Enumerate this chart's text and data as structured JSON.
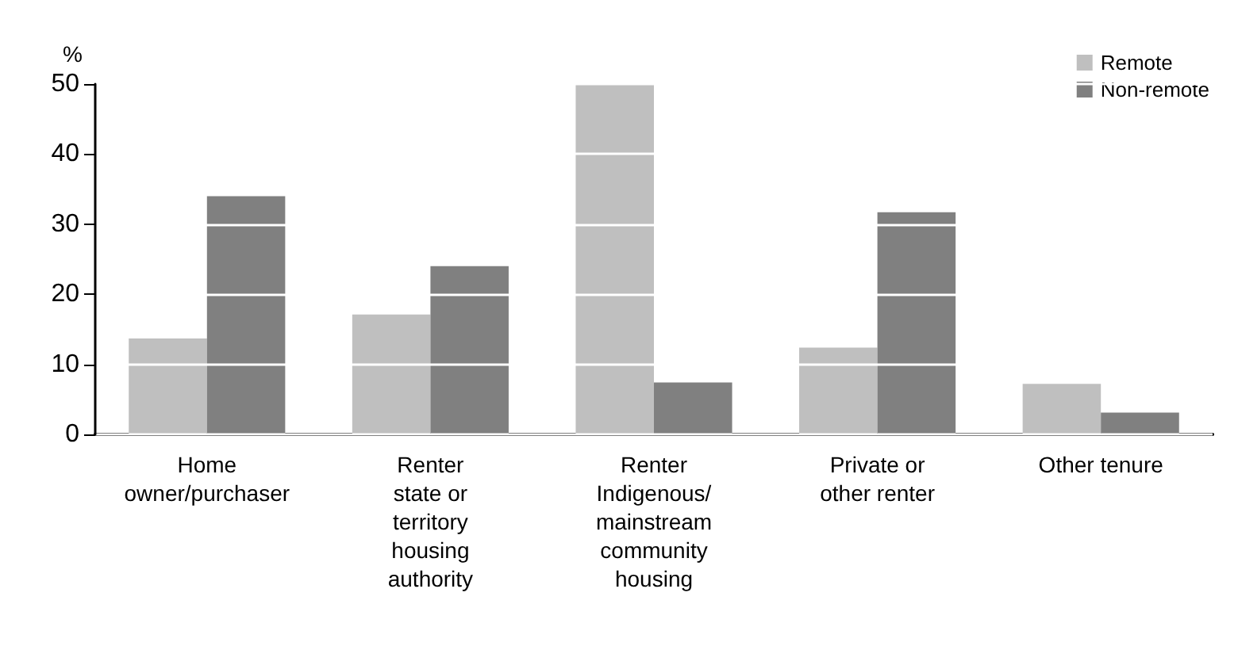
{
  "chart_data": {
    "type": "bar",
    "ylabel": "%",
    "categories": [
      "Home\nowner/purchaser",
      "Renter\nstate or\nterritory\nhousing\nauthority",
      "Renter\nIndigenous/\nmainstream\ncommunity\nhousing",
      "Private or\nother renter",
      "Other tenure"
    ],
    "series": [
      {
        "name": "Remote",
        "color": "#bfbfbf",
        "values": [
          13.7,
          17.1,
          49.9,
          12.4,
          7.2
        ]
      },
      {
        "name": "Non-remote",
        "color": "#808080",
        "values": [
          34.0,
          24.0,
          7.4,
          31.7,
          3.1
        ]
      }
    ],
    "ylim": [
      0,
      50
    ],
    "yticks": [
      0,
      10,
      20,
      30,
      40,
      50
    ],
    "grid": "y",
    "legend": "top right"
  }
}
